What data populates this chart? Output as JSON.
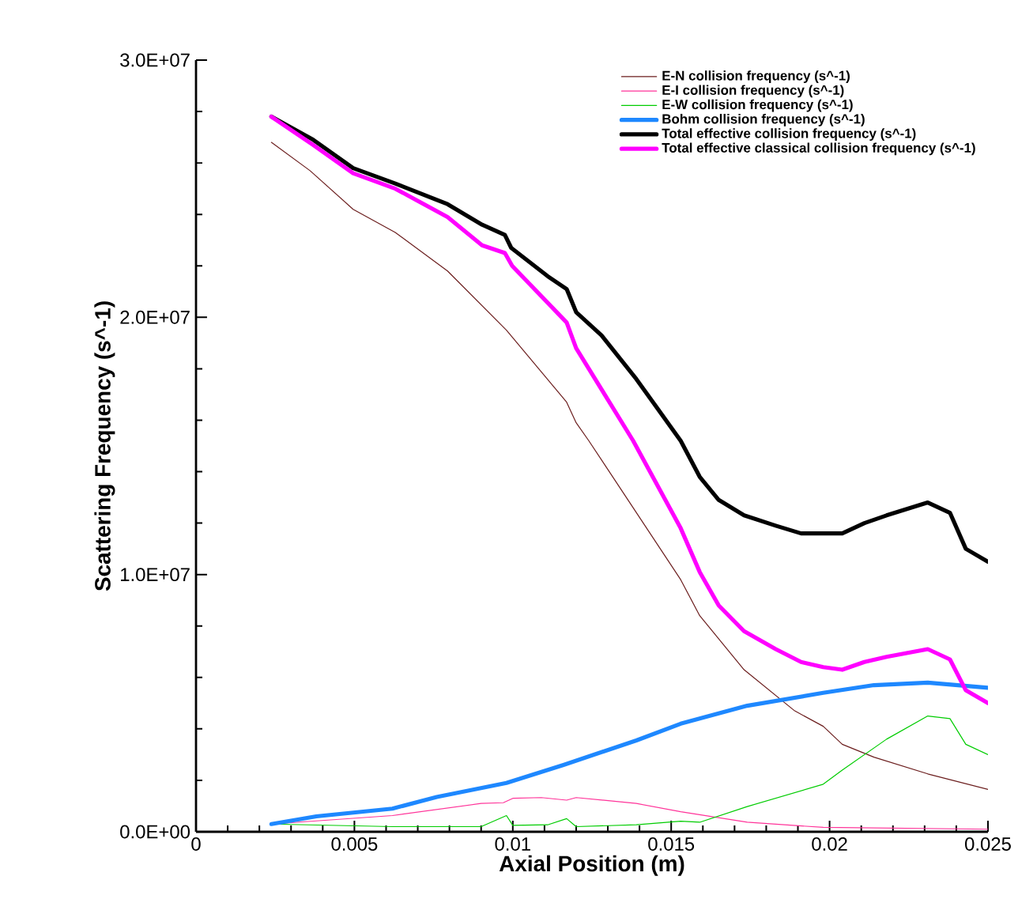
{
  "chart_data": {
    "type": "line",
    "xlabel": "Axial Position (m)",
    "ylabel": "Scattering Frequency (s^-1)",
    "xlim": [
      0,
      0.025
    ],
    "ylim": [
      0,
      30000000
    ],
    "xticks": [
      0,
      0.005,
      0.01,
      0.015,
      0.02,
      0.025
    ],
    "yticks": [
      {
        "value": 0,
        "label": "0.0E+00"
      },
      {
        "value": 10000000,
        "label": "1.0E+07"
      },
      {
        "value": 20000000,
        "label": "2.0E+07"
      },
      {
        "value": 30000000,
        "label": "3.0E+07"
      }
    ],
    "grid": false,
    "legend": "top right",
    "marker": "none",
    "line_style": "solid",
    "series": [
      {
        "name": "E-N collision frequency (s^-1)",
        "color": "#6b1d1d",
        "x": [
          0.00238,
          0.0036,
          0.00496,
          0.00629,
          0.00794,
          0.0098,
          0.0117,
          0.012,
          0.0124,
          0.0153,
          0.0159,
          0.0173,
          0.0189,
          0.0198,
          0.0204,
          0.0214,
          0.0231,
          0.025
        ],
        "values": [
          26800000,
          25700000,
          24200000,
          23300000,
          21800000,
          19500000,
          16700000,
          15900000,
          15200000,
          9800000,
          8400000,
          6300000,
          4700000,
          4100000,
          3400000,
          2900000,
          2250000,
          1650000
        ]
      },
      {
        "name": "E-I collision frequency (s^-1)",
        "color": "#ff3399",
        "x": [
          0.00238,
          0.0062,
          0.009,
          0.0097,
          0.01,
          0.0109,
          0.0117,
          0.012,
          0.0139,
          0.0153,
          0.0174,
          0.0198,
          0.025
        ],
        "values": [
          300000,
          630000,
          1100000,
          1130000,
          1300000,
          1330000,
          1230000,
          1330000,
          1100000,
          780000,
          370000,
          170000,
          100000
        ]
      },
      {
        "name": "E-W collision frequency (s^-1)",
        "color": "#00cc00",
        "x": [
          0.00238,
          0.0062,
          0.009,
          0.0098,
          0.01,
          0.0111,
          0.0117,
          0.012,
          0.0139,
          0.0153,
          0.0159,
          0.0174,
          0.0198,
          0.0204,
          0.0218,
          0.0231,
          0.0238,
          0.0243,
          0.025
        ],
        "values": [
          300000,
          200000,
          200000,
          630000,
          250000,
          270000,
          510000,
          200000,
          270000,
          410000,
          370000,
          980000,
          1850000,
          2400000,
          3600000,
          4500000,
          4400000,
          3400000,
          3000000
        ]
      },
      {
        "name": "Bohm collision frequency (s^-1)",
        "color": "#1e88ff",
        "x": [
          0.00238,
          0.0038,
          0.0062,
          0.0076,
          0.0098,
          0.0116,
          0.0139,
          0.0153,
          0.0174,
          0.0198,
          0.0214,
          0.0231,
          0.025
        ],
        "values": [
          300000,
          600000,
          900000,
          1350000,
          1900000,
          2600000,
          3550000,
          4200000,
          4900000,
          5400000,
          5700000,
          5800000,
          5600000
        ]
      },
      {
        "name": "Total effective collision frequency (s^-1)",
        "color": "#000000",
        "x": [
          0.00238,
          0.0037,
          0.00496,
          0.00629,
          0.00794,
          0.00903,
          0.00975,
          0.00995,
          0.0111,
          0.0117,
          0.012,
          0.0128,
          0.0139,
          0.0153,
          0.0159,
          0.0165,
          0.0173,
          0.0183,
          0.0191,
          0.0198,
          0.0204,
          0.0211,
          0.0218,
          0.0231,
          0.0238,
          0.0243,
          0.025
        ],
        "values": [
          27800000,
          26900000,
          25800000,
          25200000,
          24400000,
          23600000,
          23200000,
          22700000,
          21600000,
          21100000,
          20200000,
          19300000,
          17600000,
          15200000,
          13800000,
          12900000,
          12300000,
          11900000,
          11600000,
          11600000,
          11600000,
          12000000,
          12300000,
          12800000,
          12400000,
          11000000,
          10500000
        ]
      },
      {
        "name": "Total effective classical collision frequency (s^-1)",
        "color": "#ff00ff",
        "x": [
          0.00238,
          0.0037,
          0.00496,
          0.00629,
          0.00794,
          0.00903,
          0.00975,
          0.00998,
          0.0117,
          0.012,
          0.0126,
          0.0138,
          0.0153,
          0.0159,
          0.0165,
          0.0173,
          0.0183,
          0.0191,
          0.0198,
          0.0204,
          0.0211,
          0.0218,
          0.0231,
          0.0238,
          0.0243,
          0.025
        ],
        "values": [
          27800000,
          26700000,
          25600000,
          25000000,
          23900000,
          22800000,
          22500000,
          22000000,
          19800000,
          18800000,
          17600000,
          15200000,
          11800000,
          10100000,
          8800000,
          7800000,
          7100000,
          6600000,
          6400000,
          6300000,
          6600000,
          6800000,
          7100000,
          6700000,
          5500000,
          5000000
        ]
      }
    ]
  }
}
